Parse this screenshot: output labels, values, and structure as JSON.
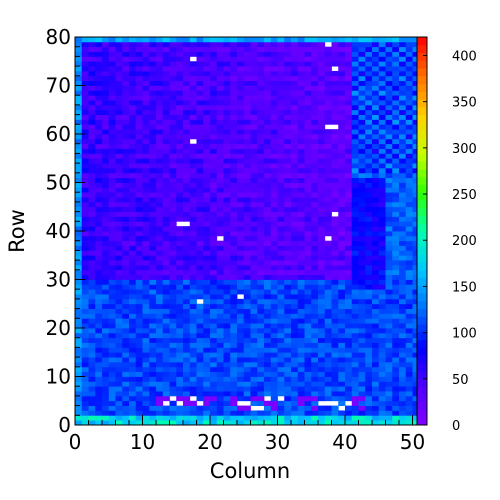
{
  "chart_data": {
    "type": "heatmap",
    "xlabel": "Column",
    "ylabel": "Row",
    "xlim": [
      0,
      52
    ],
    "ylim": [
      0,
      80
    ],
    "x_ticks": [
      "0",
      "10",
      "20",
      "30",
      "40",
      "50"
    ],
    "y_ticks": [
      "0",
      "10",
      "20",
      "30",
      "40",
      "50",
      "60",
      "70",
      "80"
    ],
    "z_range": [
      0,
      420
    ],
    "colorbar_ticks": [
      "0",
      "50",
      "100",
      "150",
      "200",
      "250",
      "300",
      "350",
      "400"
    ],
    "colorbar_palette": [
      "#8000ff",
      "#5000ff",
      "#0000ff",
      "#0070ff",
      "#00c8ff",
      "#00ffb0",
      "#30ff00",
      "#c8ff00",
      "#ffd000",
      "#ff7000",
      "#ff0000"
    ],
    "grid": false,
    "regions": [
      {
        "name": "upper-left panel",
        "cols": [
          1,
          40
        ],
        "rows": [
          30,
          79
        ],
        "value": 50
      },
      {
        "name": "upper-right panel",
        "cols": [
          41,
          51
        ],
        "rows": [
          30,
          79
        ],
        "value": 120
      },
      {
        "name": "lower panel",
        "cols": [
          1,
          51
        ],
        "rows": [
          1,
          29
        ],
        "value": 110
      },
      {
        "name": "right panel mid",
        "cols": [
          41,
          45
        ],
        "rows": [
          28,
          50
        ],
        "value": 80
      }
    ],
    "empty_cells": [
      [
        17,
        75
      ],
      [
        37,
        78
      ],
      [
        38,
        73
      ],
      [
        17,
        58
      ],
      [
        37,
        61
      ],
      [
        38,
        61
      ],
      [
        38,
        43
      ],
      [
        15,
        41
      ],
      [
        16,
        41
      ],
      [
        21,
        38
      ],
      [
        37,
        38
      ],
      [
        18,
        25
      ],
      [
        24,
        26
      ],
      [
        13,
        4
      ],
      [
        14,
        5
      ],
      [
        15,
        4
      ],
      [
        17,
        5
      ],
      [
        18,
        4
      ],
      [
        24,
        4
      ],
      [
        25,
        4
      ],
      [
        26,
        3
      ],
      [
        27,
        3
      ],
      [
        28,
        5
      ],
      [
        30,
        5
      ],
      [
        36,
        4
      ],
      [
        37,
        4
      ],
      [
        38,
        4
      ],
      [
        39,
        3
      ],
      [
        40,
        4
      ]
    ],
    "low_cells": [
      [
        12,
        5
      ],
      [
        13,
        5
      ],
      [
        15,
        5
      ],
      [
        16,
        5
      ],
      [
        19,
        5
      ],
      [
        20,
        5
      ],
      [
        23,
        5
      ],
      [
        26,
        5
      ],
      [
        27,
        5
      ],
      [
        29,
        4
      ],
      [
        33,
        5
      ],
      [
        34,
        5
      ],
      [
        35,
        5
      ],
      [
        41,
        5
      ],
      [
        42,
        5
      ],
      [
        12,
        4
      ],
      [
        16,
        4
      ],
      [
        17,
        4
      ],
      [
        19,
        4
      ],
      [
        23,
        4
      ],
      [
        24,
        3
      ],
      [
        25,
        3
      ],
      [
        28,
        4
      ],
      [
        29,
        3
      ],
      [
        33,
        4
      ],
      [
        35,
        3
      ],
      [
        41,
        4
      ],
      [
        42,
        3
      ]
    ]
  }
}
